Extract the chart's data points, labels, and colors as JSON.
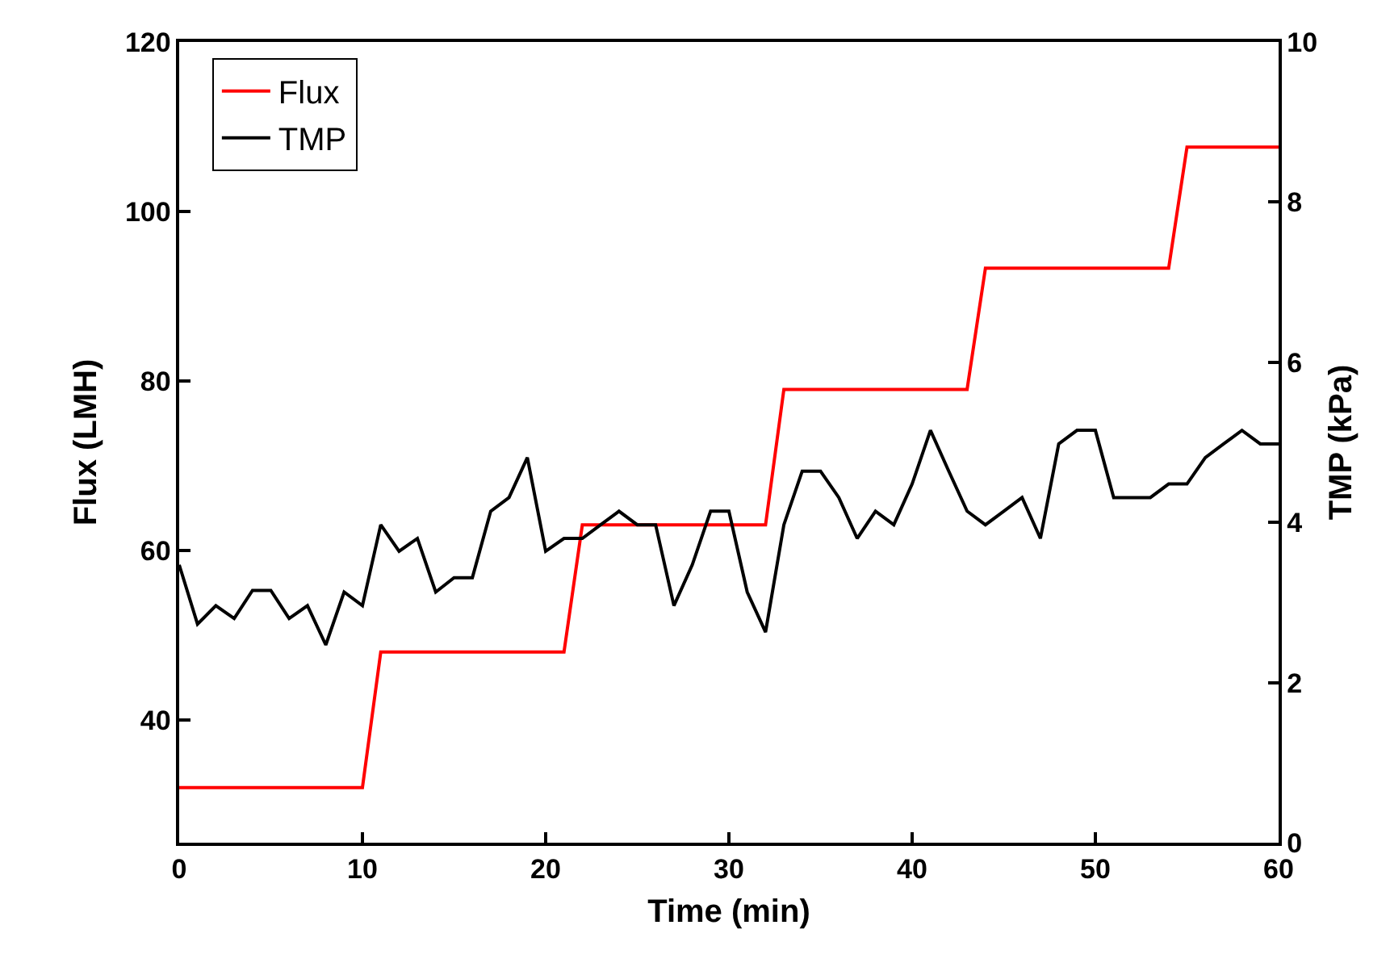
{
  "chart_data": {
    "type": "line",
    "xlabel": "Time (min)",
    "ylabel": "Flux (LMH)",
    "y2label": "TMP (kPa)",
    "xlim": [
      0,
      60
    ],
    "xticks": [
      0,
      10,
      20,
      30,
      40,
      50,
      60
    ],
    "ylim": [
      25.5,
      120
    ],
    "yticks": [
      40,
      60,
      80,
      100,
      120
    ],
    "y2lim": [
      0,
      10
    ],
    "y2ticks": [
      0,
      2,
      4,
      6,
      8,
      10
    ],
    "grid": false,
    "legend": "top left",
    "marker": "none",
    "line_style": "solid",
    "series": [
      {
        "name": "Flux",
        "color": "#ff0000",
        "x": [
          0,
          10,
          11,
          21,
          22,
          32,
          33,
          43,
          44,
          54,
          55,
          60
        ],
        "values": [
          32,
          32,
          48,
          48,
          63,
          63,
          79,
          79,
          93.3,
          93.3,
          107.6,
          107.6
        ]
      },
      {
        "name": "TMP",
        "color": "#000000",
        "axis": "y2",
        "x": [
          0,
          1,
          2,
          3,
          4,
          5,
          6,
          7,
          8,
          9,
          10,
          11,
          12,
          13,
          14,
          15,
          16,
          17,
          18,
          19,
          20,
          21,
          22,
          23,
          24,
          25,
          26,
          27,
          28,
          29,
          30,
          31,
          32,
          33,
          34,
          35,
          36,
          37,
          38,
          39,
          40,
          41,
          42,
          43,
          44,
          45,
          46,
          47,
          48,
          49,
          50,
          51,
          52,
          53,
          54,
          55,
          56,
          57,
          58,
          59,
          60
        ],
        "values": [
          3.47,
          2.73,
          2.96,
          2.8,
          3.15,
          3.15,
          2.8,
          2.96,
          2.47,
          3.13,
          2.96,
          3.97,
          3.64,
          3.8,
          3.13,
          3.31,
          3.31,
          4.14,
          4.31,
          4.81,
          3.64,
          3.8,
          3.8,
          3.97,
          4.14,
          3.97,
          3.97,
          2.96,
          3.47,
          4.14,
          4.14,
          3.13,
          2.63,
          3.97,
          4.64,
          4.64,
          4.31,
          3.8,
          4.14,
          3.97,
          4.48,
          5.15,
          4.64,
          4.14,
          3.97,
          4.14,
          4.31,
          3.8,
          4.98,
          5.15,
          5.15,
          4.31,
          4.31,
          4.31,
          4.48,
          4.48,
          4.81,
          4.98,
          5.15,
          4.98,
          4.98
        ]
      }
    ]
  }
}
